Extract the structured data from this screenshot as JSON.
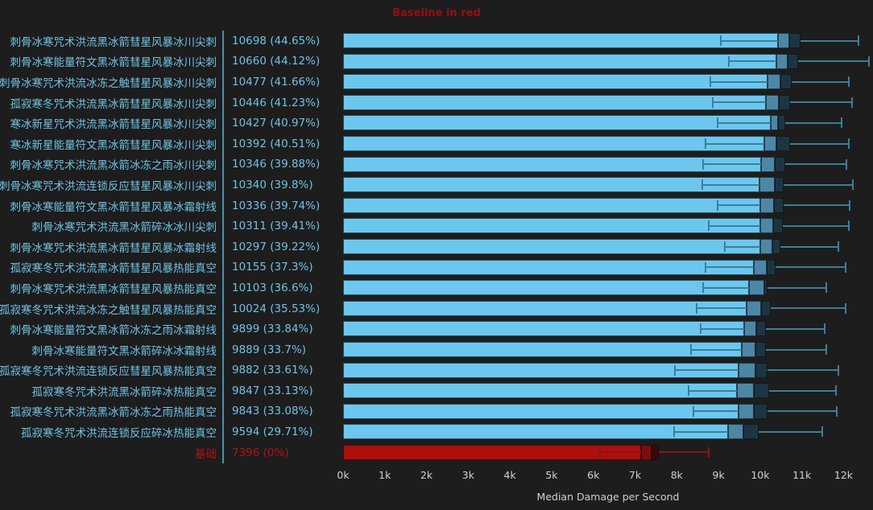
{
  "title": {
    "text": "Baseline in red"
  },
  "colors": {
    "background": "#1d1d1d",
    "text_blue": "#6fc2e6",
    "bar_blue": "#6cc7ee",
    "box_mid_blue": "#4d87a5",
    "box_dark_blue": "#1d3542",
    "whisker_blue": "#3e7d9b",
    "divider_blue": "#4a8fb0",
    "title_red": "#970f0f",
    "baseline_text_red": "#b01212",
    "bar_red": "#ad0f0f",
    "box_mid_red": "#7e0d0d",
    "box_dark_red": "#3c0909",
    "whisker_red": "#8b1515",
    "axis_text": "#d0d0d0"
  },
  "chart_data": {
    "type": "bar",
    "orientation": "horizontal",
    "title": "Baseline in red",
    "xlabel": "Median Damage per Second",
    "xlim": [
      0,
      12705
    ],
    "grid": false,
    "x_ticks": [
      {
        "v": 0,
        "label": "0k"
      },
      {
        "v": 1000,
        "label": "1k"
      },
      {
        "v": 2000,
        "label": "2k"
      },
      {
        "v": 3000,
        "label": "3k"
      },
      {
        "v": 4000,
        "label": "4k"
      },
      {
        "v": 5000,
        "label": "5k"
      },
      {
        "v": 6000,
        "label": "6k"
      },
      {
        "v": 7000,
        "label": "7k"
      },
      {
        "v": 8000,
        "label": "8k"
      },
      {
        "v": 9000,
        "label": "9k"
      },
      {
        "v": 10000,
        "label": "10k"
      },
      {
        "v": 11000,
        "label": "11k"
      },
      {
        "v": 12000,
        "label": "12k"
      }
    ],
    "rows": [
      {
        "label": "刺骨冰寒咒术洪流黑冰箭彗星风暴冰川尖刺",
        "value_text": "10698 (44.65%)",
        "median": 10698,
        "pct": 44.65,
        "q1": 10420,
        "q3": 10960,
        "lo": 9060,
        "hi": 12350,
        "baseline": false
      },
      {
        "label": "刺骨冰寒能量符文黑冰箭彗星风暴冰川尖刺",
        "value_text": "10660 (44.12%)",
        "median": 10660,
        "pct": 44.12,
        "q1": 10380,
        "q3": 10900,
        "lo": 9240,
        "hi": 12600,
        "baseline": false
      },
      {
        "label": "刺骨冰寒咒术洪流冰冻之触彗星风暴冰川尖刺",
        "value_text": "10477 (41.66%)",
        "median": 10477,
        "pct": 41.66,
        "q1": 10180,
        "q3": 10760,
        "lo": 8810,
        "hi": 12120,
        "baseline": false
      },
      {
        "label": "孤寂寒冬咒术洪流黑冰箭彗星风暴冰川尖刺",
        "value_text": "10446 (41.23%)",
        "median": 10446,
        "pct": 41.23,
        "q1": 10130,
        "q3": 10710,
        "lo": 8870,
        "hi": 12210,
        "baseline": false
      },
      {
        "label": "寒冰新星咒术洪流黑冰箭彗星风暴冰川尖刺",
        "value_text": "10427 (40.97%)",
        "median": 10427,
        "pct": 40.97,
        "q1": 10260,
        "q3": 10610,
        "lo": 8970,
        "hi": 11960,
        "baseline": false
      },
      {
        "label": "寒冰新星能量符文黑冰箭彗星风暴冰川尖刺",
        "value_text": "10392 (40.51%)",
        "median": 10392,
        "pct": 40.51,
        "q1": 10090,
        "q3": 10710,
        "lo": 8680,
        "hi": 12120,
        "baseline": false
      },
      {
        "label": "刺骨冰寒咒术洪流黑冰箭冰冻之雨冰川尖刺",
        "value_text": "10346 (39.88%)",
        "median": 10346,
        "pct": 39.88,
        "q1": 10030,
        "q3": 10610,
        "lo": 8640,
        "hi": 12060,
        "baseline": false
      },
      {
        "label": "刺骨冰寒咒术洪流连锁反应彗星风暴冰川尖刺",
        "value_text": "10340 (39.8%)",
        "median": 10340,
        "pct": 39.8,
        "q1": 9990,
        "q3": 10570,
        "lo": 8620,
        "hi": 12230,
        "baseline": false
      },
      {
        "label": "刺骨冰寒能量符文黑冰箭彗星风暴冰霜射线",
        "value_text": "10336 (39.74%)",
        "median": 10336,
        "pct": 39.74,
        "q1": 10010,
        "q3": 10570,
        "lo": 8970,
        "hi": 12140,
        "baseline": false
      },
      {
        "label": "刺骨冰寒咒术洪流黑冰箭碎冰冰川尖刺",
        "value_text": "10311 (39.41%)",
        "median": 10311,
        "pct": 39.41,
        "q1": 10010,
        "q3": 10550,
        "lo": 8770,
        "hi": 12120,
        "baseline": false
      },
      {
        "label": "刺骨冰寒咒术洪流黑冰箭彗星风暴冰霜射线",
        "value_text": "10297 (39.22%)",
        "median": 10297,
        "pct": 39.22,
        "q1": 10010,
        "q3": 10480,
        "lo": 9160,
        "hi": 11870,
        "baseline": false
      },
      {
        "label": "孤寂寒冬咒术洪流黑冰箭彗星风暴热能真空",
        "value_text": "10155 (37.3%)",
        "median": 10155,
        "pct": 37.3,
        "q1": 9840,
        "q3": 10360,
        "lo": 8680,
        "hi": 12040,
        "baseline": false
      },
      {
        "label": "刺骨冰寒咒术洪流黑冰箭彗星风暴热能真空",
        "value_text": "10103 (36.6%)",
        "median": 10103,
        "pct": 36.6,
        "q1": 9740,
        "q3": 10180,
        "lo": 8640,
        "hi": 11580,
        "baseline": false
      },
      {
        "label": "孤寂寒冬咒术洪流冰冻之触彗星风暴热能真空",
        "value_text": "10024 (35.53%)",
        "median": 10024,
        "pct": 35.53,
        "q1": 9680,
        "q3": 10260,
        "lo": 8480,
        "hi": 12040,
        "baseline": false
      },
      {
        "label": "刺骨冰寒能量符文黑冰箭冰冻之雨冰霜射线",
        "value_text": "9899 (33.84%)",
        "median": 9899,
        "pct": 33.84,
        "q1": 9610,
        "q3": 10130,
        "lo": 8580,
        "hi": 11540,
        "baseline": false
      },
      {
        "label": "刺骨冰寒能量符文黑冰箭碎冰冰霜射线",
        "value_text": "9889 (33.7%)",
        "median": 9889,
        "pct": 33.7,
        "q1": 9550,
        "q3": 10130,
        "lo": 8350,
        "hi": 11580,
        "baseline": false
      },
      {
        "label": "孤寂寒冬咒术洪流连锁反应彗星风暴热能真空",
        "value_text": "9882 (33.61%)",
        "median": 9882,
        "pct": 33.61,
        "q1": 9490,
        "q3": 10180,
        "lo": 7960,
        "hi": 11870,
        "baseline": false
      },
      {
        "label": "孤寂寒冬咒术洪流黑冰箭碎冰热能真空",
        "value_text": "9847 (33.13%)",
        "median": 9847,
        "pct": 33.13,
        "q1": 9450,
        "q3": 10220,
        "lo": 8290,
        "hi": 11810,
        "baseline": false
      },
      {
        "label": "孤寂寒冬咒术洪流黑冰箭冰冻之雨热能真空",
        "value_text": "9843 (33.08%)",
        "median": 9843,
        "pct": 33.08,
        "q1": 9490,
        "q3": 10170,
        "lo": 8390,
        "hi": 11830,
        "baseline": false
      },
      {
        "label": "孤寂寒冬咒术洪流连锁反应碎冰热能真空",
        "value_text": "9594 (29.71%)",
        "median": 9594,
        "pct": 29.71,
        "q1": 9220,
        "q3": 9970,
        "lo": 7940,
        "hi": 11480,
        "baseline": false
      },
      {
        "label": "基础",
        "value_text": "7396 (0%)",
        "median": 7396,
        "pct": 0,
        "q1": 7150,
        "q3": 7575,
        "lo": 6160,
        "hi": 8770,
        "baseline": true
      }
    ]
  }
}
